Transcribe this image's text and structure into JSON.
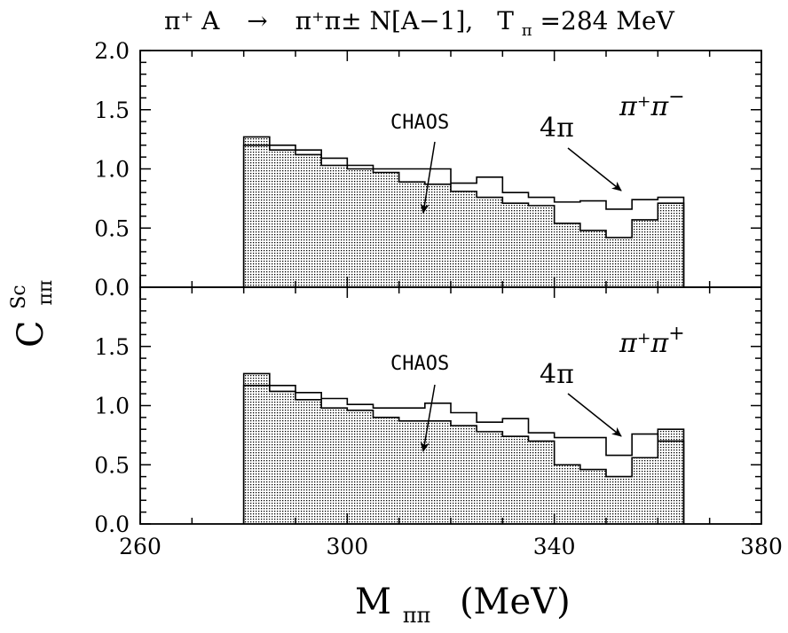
{
  "chart_data": {
    "type": "bar",
    "title": "π⁺ A → π⁺π± N[A−1], Tπ=284 MeV",
    "title_parts": {
      "lhs": "π⁺ A",
      "arrow": "→",
      "rhs": "π⁺π± N[A−1],",
      "energy_label": "T",
      "energy_sub": "π",
      "energy_value": "=284 MeV"
    },
    "xlabel": {
      "main": "M",
      "sub": "ππ",
      "unit": "(MeV)"
    },
    "ylabel": {
      "main": "C",
      "sup": "Sc",
      "sub": "ππ"
    },
    "xlim": [
      260,
      380
    ],
    "x_ticks": [
      "260",
      "300",
      "340",
      "380"
    ],
    "ylim": [
      0,
      2
    ],
    "y_ticks_top": [
      "0.0",
      "0.5",
      "1.0",
      "1.5",
      "2.0"
    ],
    "y_ticks_bottom": [
      "0.0",
      "0.5",
      "1.0",
      "1.5"
    ],
    "grid": false,
    "bin_edges": [
      280,
      285,
      290,
      295,
      300,
      305,
      310,
      315,
      320,
      325,
      330,
      335,
      340,
      345,
      350,
      355,
      360,
      365
    ],
    "panels": [
      {
        "label": {
          "base": "π⁺π",
          "sup2": "−"
        },
        "series": [
          {
            "name": "CHAOS",
            "style": "shaded",
            "values": [
              1.27,
              1.16,
              1.12,
              1.03,
              1.0,
              0.97,
              0.89,
              0.87,
              0.81,
              0.76,
              0.71,
              0.69,
              0.54,
              0.48,
              0.42,
              0.57,
              0.71
            ]
          },
          {
            "name": "4π",
            "style": "outline",
            "values": [
              1.2,
              1.2,
              1.16,
              1.09,
              1.03,
              1.0,
              1.0,
              1.0,
              0.88,
              0.93,
              0.8,
              0.76,
              0.72,
              0.73,
              0.66,
              0.74,
              0.76
            ]
          }
        ],
        "annotations": {
          "chaos": "CHAOS",
          "four_pi": "4π"
        }
      },
      {
        "label": {
          "base": "π⁺π",
          "sup2": "+"
        },
        "series": [
          {
            "name": "CHAOS",
            "style": "shaded",
            "values": [
              1.27,
              1.12,
              1.05,
              0.98,
              0.96,
              0.9,
              0.87,
              0.87,
              0.83,
              0.78,
              0.74,
              0.7,
              0.5,
              0.46,
              0.4,
              0.56,
              0.8
            ]
          },
          {
            "name": "4π",
            "style": "outline",
            "values": [
              1.17,
              1.17,
              1.11,
              1.06,
              1.01,
              0.98,
              0.98,
              1.02,
              0.94,
              0.86,
              0.89,
              0.77,
              0.73,
              0.73,
              0.58,
              0.76,
              0.7
            ]
          }
        ],
        "annotations": {
          "chaos": "CHAOS",
          "four_pi": "4π"
        }
      }
    ]
  }
}
